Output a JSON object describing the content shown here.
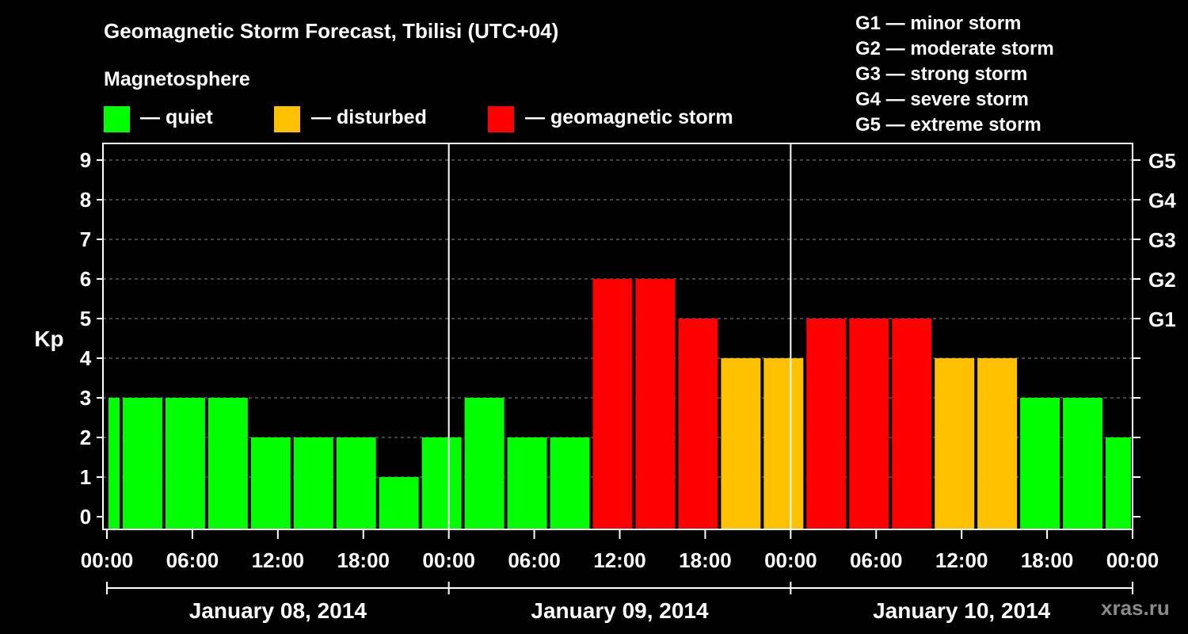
{
  "header": {
    "title": "Geomagnetic Storm Forecast, Tbilisi (UTC+04)",
    "magnetosphere_label": "Magnetosphere"
  },
  "legend": [
    {
      "label": "— quiet",
      "color": "#00ff00"
    },
    {
      "label": "— disturbed",
      "color": "#ffc000"
    },
    {
      "label": "— geomagnetic storm",
      "color": "#ff0000"
    }
  ],
  "g_scale": [
    "G1 — minor storm",
    "G2 — moderate storm",
    "G3 — strong storm",
    "G4 — severe storm",
    "G5 — extreme storm"
  ],
  "credit": "xras.ru",
  "chart_data": {
    "type": "bar",
    "ylabel": "Kp",
    "ylim": [
      0,
      9
    ],
    "y_ticks": [
      0,
      1,
      2,
      3,
      4,
      5,
      6,
      7,
      8,
      9
    ],
    "right_ticks": [
      {
        "kp": 5,
        "label": "G1"
      },
      {
        "kp": 6,
        "label": "G2"
      },
      {
        "kp": 7,
        "label": "G3"
      },
      {
        "kp": 8,
        "label": "G4"
      },
      {
        "kp": 9,
        "label": "G5"
      }
    ],
    "x_unit": "hours since 2014-01-08 00:00",
    "x_range": [
      0,
      72
    ],
    "x_tick_labels": [
      "00:00",
      "06:00",
      "12:00",
      "18:00",
      "00:00",
      "06:00",
      "12:00",
      "18:00",
      "00:00",
      "06:00",
      "12:00",
      "18:00",
      "00:00"
    ],
    "days": [
      "January 08, 2014",
      "January 09, 2014",
      "January 10, 2014"
    ],
    "grid": "horizontal dashed",
    "colors": {
      "quiet": "#00ff00",
      "disturbed": "#ffc000",
      "storm": "#ff0000"
    },
    "bars": [
      {
        "start": 0,
        "end": 1,
        "kp": 3
      },
      {
        "start": 1,
        "end": 4,
        "kp": 3
      },
      {
        "start": 4,
        "end": 7,
        "kp": 3
      },
      {
        "start": 7,
        "end": 10,
        "kp": 3
      },
      {
        "start": 10,
        "end": 13,
        "kp": 2
      },
      {
        "start": 13,
        "end": 16,
        "kp": 2
      },
      {
        "start": 16,
        "end": 19,
        "kp": 2
      },
      {
        "start": 19,
        "end": 22,
        "kp": 1
      },
      {
        "start": 22,
        "end": 25,
        "kp": 2
      },
      {
        "start": 25,
        "end": 28,
        "kp": 3
      },
      {
        "start": 28,
        "end": 31,
        "kp": 2
      },
      {
        "start": 31,
        "end": 34,
        "kp": 2
      },
      {
        "start": 34,
        "end": 37,
        "kp": 6
      },
      {
        "start": 37,
        "end": 40,
        "kp": 6
      },
      {
        "start": 40,
        "end": 43,
        "kp": 5
      },
      {
        "start": 43,
        "end": 46,
        "kp": 4
      },
      {
        "start": 46,
        "end": 49,
        "kp": 4
      },
      {
        "start": 49,
        "end": 52,
        "kp": 5
      },
      {
        "start": 52,
        "end": 55,
        "kp": 5
      },
      {
        "start": 55,
        "end": 58,
        "kp": 5
      },
      {
        "start": 58,
        "end": 61,
        "kp": 4
      },
      {
        "start": 61,
        "end": 64,
        "kp": 4
      },
      {
        "start": 64,
        "end": 67,
        "kp": 3
      },
      {
        "start": 67,
        "end": 70,
        "kp": 3
      },
      {
        "start": 70,
        "end": 72,
        "kp": 2
      }
    ]
  }
}
